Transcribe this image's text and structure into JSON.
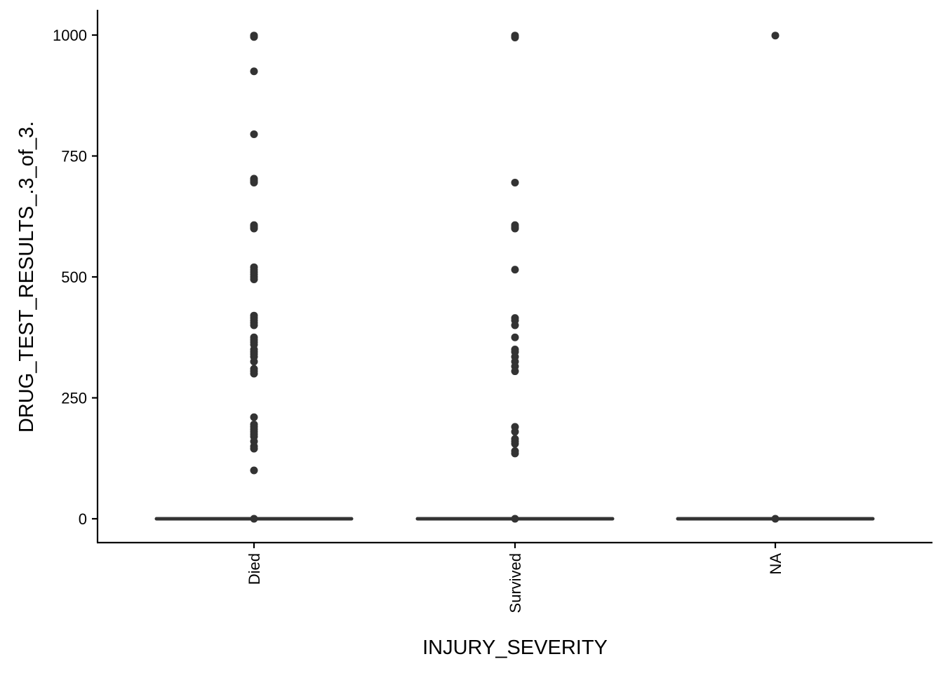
{
  "chart_data": {
    "type": "boxplot",
    "xlabel": "INJURY_SEVERITY",
    "ylabel": "DRUG_TEST_RESULTS_.3_of_3.",
    "categories": [
      "Died",
      "Survived",
      "NA"
    ],
    "ylim": [
      -50,
      1050
    ],
    "yticks": [
      0,
      250,
      500,
      750,
      1000
    ],
    "ytick_labels": [
      "0",
      "250",
      "500",
      "750",
      "1000"
    ],
    "grid": false,
    "legend": "none",
    "color": "#333333",
    "boxes": [
      {
        "category": "Died",
        "min": 0,
        "q1": 0,
        "median": 0,
        "q3": 0,
        "max": 0,
        "outliers": [
          999,
          998,
          996,
          925,
          795,
          703,
          700,
          697,
          695,
          607,
          605,
          603,
          600,
          520,
          515,
          510,
          505,
          500,
          495,
          420,
          415,
          410,
          405,
          400,
          375,
          370,
          365,
          360,
          350,
          345,
          340,
          335,
          325,
          310,
          305,
          300,
          210,
          195,
          190,
          185,
          180,
          175,
          170,
          160,
          150,
          145,
          100,
          0
        ]
      },
      {
        "category": "Survived",
        "min": 0,
        "q1": 0,
        "median": 0,
        "q3": 0,
        "max": 0,
        "outliers": [
          999,
          997,
          995,
          695,
          607,
          603,
          600,
          515,
          415,
          410,
          400,
          375,
          350,
          345,
          335,
          325,
          315,
          305,
          190,
          180,
          165,
          160,
          155,
          140,
          135,
          0
        ]
      },
      {
        "category": "NA",
        "min": 0,
        "q1": 0,
        "median": 0,
        "q3": 0,
        "max": 0,
        "outliers": [
          999,
          0
        ]
      }
    ]
  }
}
